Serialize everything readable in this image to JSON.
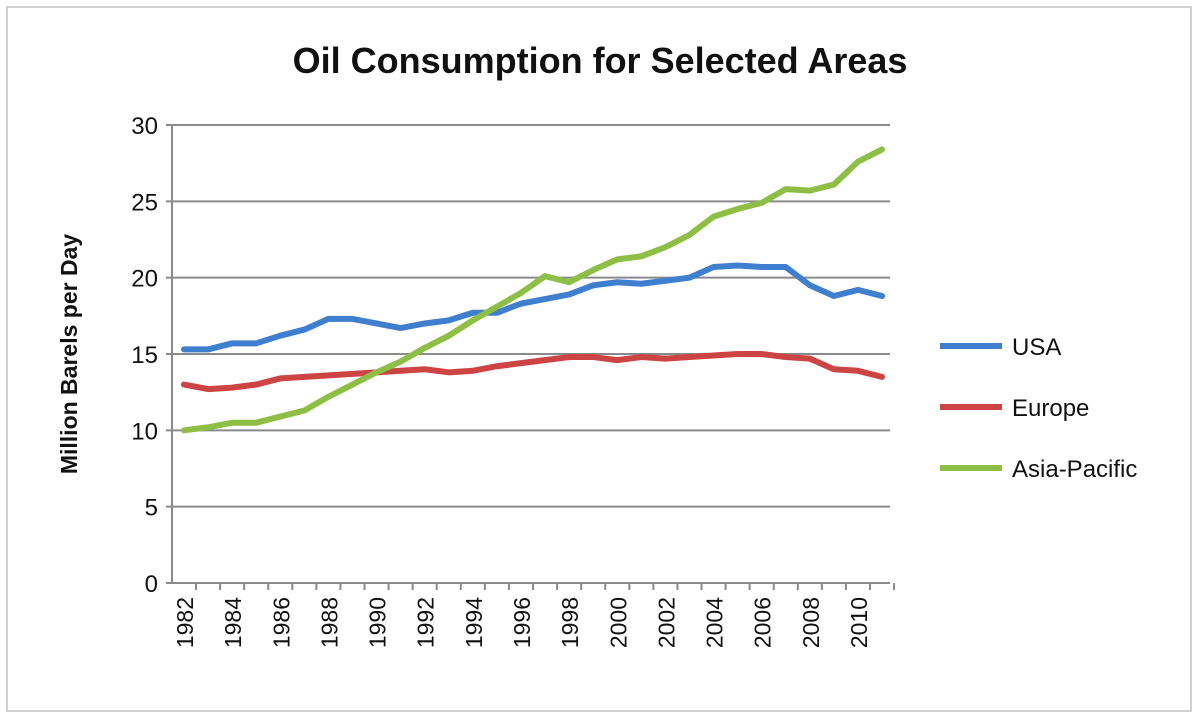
{
  "chart_data": {
    "type": "line",
    "title": "Oil Consumption for Selected Areas",
    "xlabel": "",
    "ylabel": "Million Barels per Day",
    "ylim": [
      0,
      30
    ],
    "yticks": [
      0,
      5,
      10,
      15,
      20,
      25,
      30
    ],
    "grid": true,
    "legend_position": "right",
    "x": [
      1982,
      1983,
      1984,
      1985,
      1986,
      1987,
      1988,
      1989,
      1990,
      1991,
      1992,
      1993,
      1994,
      1995,
      1996,
      1997,
      1998,
      1999,
      2000,
      2001,
      2002,
      2003,
      2004,
      2005,
      2006,
      2007,
      2008,
      2009,
      2010,
      2011
    ],
    "xtick_labels": [
      "1982",
      "1984",
      "1986",
      "1988",
      "1990",
      "1992",
      "1994",
      "1996",
      "1998",
      "2000",
      "2002",
      "2004",
      "2006",
      "2008",
      "2010"
    ],
    "series": [
      {
        "name": "USA",
        "color": "#3f7fcf",
        "values": [
          15.3,
          15.3,
          15.7,
          15.7,
          16.2,
          16.6,
          17.3,
          17.3,
          17.0,
          16.7,
          17.0,
          17.2,
          17.7,
          17.7,
          18.3,
          18.6,
          18.9,
          19.5,
          19.7,
          19.6,
          19.8,
          20.0,
          20.7,
          20.8,
          20.7,
          20.7,
          19.5,
          18.8,
          19.2,
          18.8
        ]
      },
      {
        "name": "Europe",
        "color": "#cc4444",
        "values": [
          13.0,
          12.7,
          12.8,
          13.0,
          13.4,
          13.5,
          13.6,
          13.7,
          13.8,
          13.9,
          14.0,
          13.8,
          13.9,
          14.2,
          14.4,
          14.6,
          14.8,
          14.8,
          14.6,
          14.8,
          14.7,
          14.8,
          14.9,
          15.0,
          15.0,
          14.8,
          14.7,
          14.0,
          13.9,
          13.5
        ]
      },
      {
        "name": "Asia-Pacific",
        "color": "#8dbf45",
        "values": [
          10.0,
          10.2,
          10.5,
          10.5,
          10.9,
          11.3,
          12.2,
          13.0,
          13.8,
          14.5,
          15.4,
          16.2,
          17.2,
          18.1,
          19.0,
          20.1,
          19.7,
          20.5,
          21.2,
          21.4,
          22.0,
          22.8,
          24.0,
          24.5,
          24.9,
          25.8,
          25.7,
          26.1,
          27.6,
          28.4
        ]
      }
    ]
  }
}
